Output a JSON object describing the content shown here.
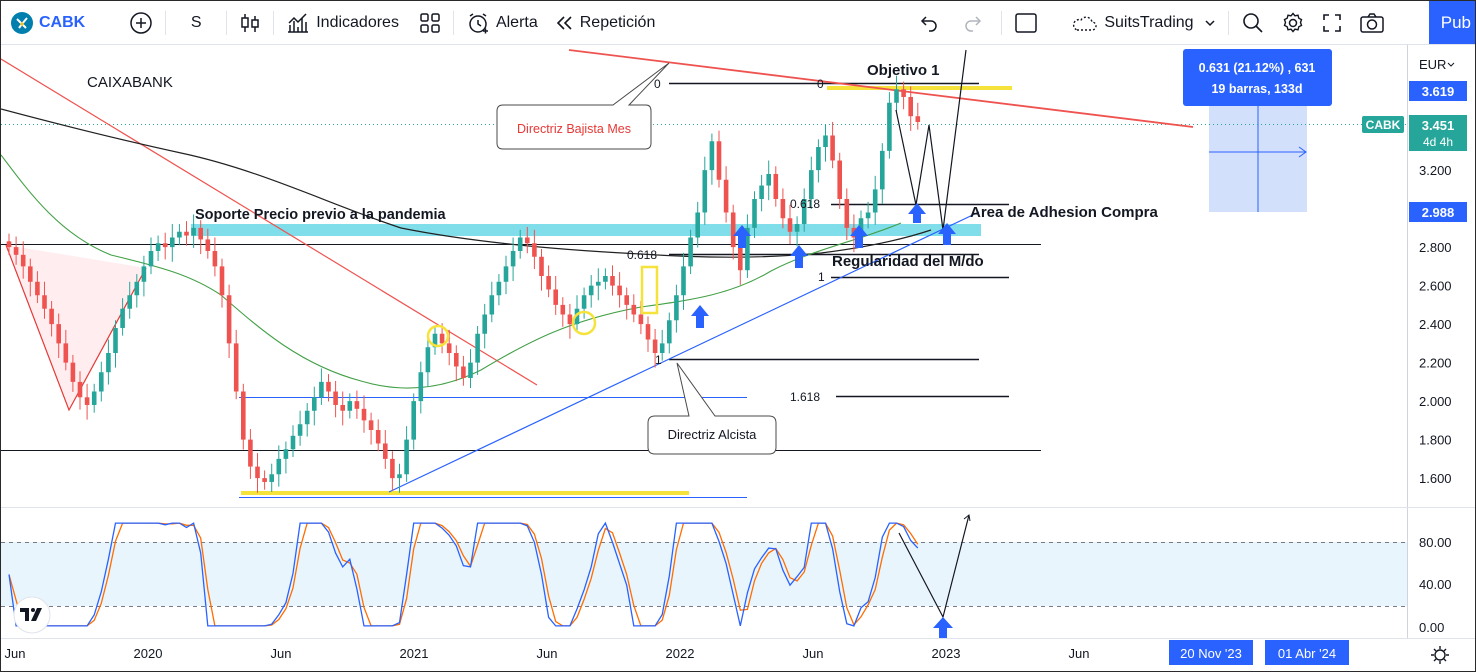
{
  "toolbar": {
    "symbol": "CABK",
    "interval": "S",
    "indicators_label": "Indicadores",
    "alert_label": "Alerta",
    "replay_label": "Repetición",
    "layout_name": "SuitsTrading",
    "publish_label": "Pub"
  },
  "chart_data": {
    "type": "candlestick",
    "symbol_title": "CAIXABANK",
    "currency": "EUR",
    "price_axis": {
      "ticks": [
        "3.200",
        "2.800",
        "2.600",
        "2.400",
        "2.200",
        "2.000",
        "1.800",
        "1.600"
      ],
      "ylim": [
        1.45,
        3.85
      ]
    },
    "time_axis": {
      "ticks": [
        "Jun",
        "2020",
        "Jun",
        "2021",
        "Jun",
        "2022",
        "Jun",
        "2023",
        "Jun"
      ]
    },
    "price_labels": {
      "top": "3.619",
      "current": "3.451",
      "current_symbol": "CABK",
      "countdown": "4d 4h",
      "bottom": "2.988"
    },
    "colors": {
      "up": "#26a69a",
      "down": "#ef5350",
      "accent": "#2962ff",
      "highlight": "#ffeb3b",
      "support": "#80deea"
    },
    "candles_close": [
      2.8,
      2.76,
      2.7,
      2.62,
      2.55,
      2.48,
      2.4,
      2.3,
      2.2,
      2.1,
      2.02,
      1.98,
      2.05,
      2.15,
      2.25,
      2.38,
      2.48,
      2.55,
      2.62,
      2.7,
      2.78,
      2.82,
      2.8,
      2.85,
      2.88,
      2.86,
      2.9,
      2.84,
      2.78,
      2.7,
      2.55,
      2.3,
      2.05,
      1.8,
      1.66,
      1.6,
      1.58,
      1.62,
      1.7,
      1.75,
      1.82,
      1.88,
      1.95,
      2.02,
      2.1,
      2.05,
      1.98,
      1.95,
      2.0,
      1.96,
      1.9,
      1.85,
      1.78,
      1.7,
      1.6,
      1.62,
      1.8,
      2.0,
      2.15,
      2.28,
      2.35,
      2.3,
      2.25,
      2.18,
      2.12,
      2.2,
      2.35,
      2.45,
      2.55,
      2.62,
      2.7,
      2.78,
      2.85,
      2.82,
      2.75,
      2.65,
      2.58,
      2.5,
      2.45,
      2.4,
      2.48,
      2.55,
      2.6,
      2.62,
      2.65,
      2.6,
      2.55,
      2.5,
      2.45,
      2.4,
      2.32,
      2.25,
      2.3,
      2.42,
      2.55,
      2.7,
      2.85,
      2.98,
      3.2,
      3.35,
      3.15,
      2.98,
      2.8,
      2.68,
      2.9,
      3.05,
      3.12,
      3.18,
      3.05,
      2.95,
      2.88,
      2.92,
      3.05,
      3.2,
      3.32,
      3.38,
      3.25,
      3.05,
      2.9,
      2.85,
      2.95,
      2.98,
      3.1,
      3.3,
      3.55,
      3.62,
      3.58,
      3.48,
      3.45
    ],
    "annotations": [
      {
        "text": "Objetivo 1",
        "kind": "label"
      },
      {
        "text": "Directriz Bajista Mes",
        "kind": "callout"
      },
      {
        "text": "Soporte Precio previo a la pandemia",
        "kind": "label"
      },
      {
        "text": "Area de Adhesion Compra",
        "kind": "label"
      },
      {
        "text": "Regularidad del M/do",
        "kind": "label"
      },
      {
        "text": "Directriz Alcista",
        "kind": "callout"
      }
    ],
    "fib_labels": [
      "0",
      "0",
      "0.618",
      "0.618",
      "1",
      "1",
      "1.618"
    ],
    "measure": {
      "line1": "0.631 (21.12%) , 631",
      "line2": "19 barras, 133d"
    },
    "oscillator": {
      "ticks": [
        "80.00",
        "40.00",
        "0.00"
      ],
      "band": [
        20,
        80
      ]
    },
    "date_range": {
      "start": "20 Nov '23",
      "end": "01 Abr '24"
    }
  }
}
